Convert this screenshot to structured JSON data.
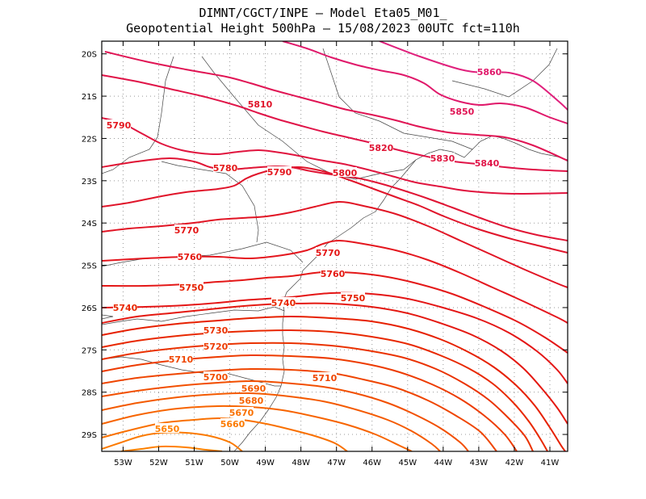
{
  "title": {
    "line1": "DIMNT/CGCT/INPE –  Model Eta05_M01_",
    "line2": "Geopotential Height 500hPa –  15/08/2023 00UTC fct=110h"
  },
  "map": {
    "lat_ticks": [
      "20S",
      "21S",
      "22S",
      "23S",
      "24S",
      "25S",
      "26S",
      "27S",
      "28S",
      "29S"
    ],
    "lon_ticks": [
      "53W",
      "52W",
      "51W",
      "50W",
      "49W",
      "48W",
      "47W",
      "46W",
      "45W",
      "44W",
      "43W",
      "42W",
      "41W"
    ],
    "lon_range": [
      -53.6,
      -40.5
    ],
    "lat_range": [
      -29.4,
      -19.7
    ]
  },
  "contours": [
    {
      "value": "5650",
      "color": "#ff8000",
      "label": "5650"
    },
    {
      "value": "5660",
      "color": "#fb7a00",
      "label": "5660"
    },
    {
      "value": "5670",
      "color": "#f97000",
      "label": "5670"
    },
    {
      "value": "5680",
      "color": "#f76400",
      "label": "5680"
    },
    {
      "value": "5690",
      "color": "#f45a00",
      "label": "5690"
    },
    {
      "value": "5700",
      "color": "#f24f00",
      "label": "5700"
    },
    {
      "value": "5710",
      "color": "#ef4500",
      "label": "5710"
    },
    {
      "value": "5720",
      "color": "#ed3b00",
      "label": "5720"
    },
    {
      "value": "5730",
      "color": "#ea3200",
      "label": "5730"
    },
    {
      "value": "5740",
      "color": "#e82800",
      "label": "5740"
    },
    {
      "value": "5750",
      "color": "#e62000",
      "label": "5750"
    },
    {
      "value": "5760",
      "color": "#e41810",
      "label": "5760"
    },
    {
      "value": "5770",
      "color": "#e41515",
      "label": "5770"
    },
    {
      "value": "5780",
      "color": "#e41818",
      "label": "5780"
    },
    {
      "value": "5790",
      "color": "#e4161e",
      "label": "5790"
    },
    {
      "value": "5800",
      "color": "#e11424",
      "label": "5800"
    },
    {
      "value": "5810",
      "color": "#e0142a",
      "label": "5810"
    },
    {
      "value": "5820",
      "color": "#e01434",
      "label": "5820"
    },
    {
      "value": "5830",
      "color": "#e0143e",
      "label": "5830"
    },
    {
      "value": "5840",
      "color": "#e01448",
      "label": "5840"
    },
    {
      "value": "5850",
      "color": "#e01454",
      "label": "5850"
    },
    {
      "value": "5860",
      "color": "#e0186a",
      "label": "5860"
    }
  ]
}
